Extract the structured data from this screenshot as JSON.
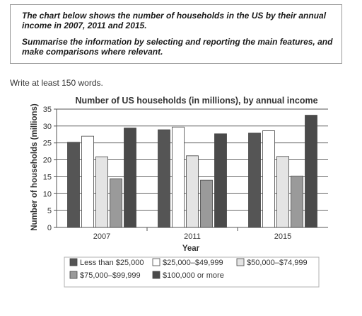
{
  "task": {
    "line1": "The chart below shows the number of households in the US by their annual income in 2007, 2011 and 2015.",
    "line2": "Summarise the information by selecting and reporting the main features, and make comparisons where relevant."
  },
  "instruction": "Write at least 150 words.",
  "colors": {
    "dark": "#555555",
    "white": "#ffffff",
    "light": "#e4e4e4",
    "mid": "#9a9a9a",
    "darker": "#4a4a4a"
  },
  "chart_data": {
    "type": "bar",
    "title": "Number of US households (in millions), by annual income",
    "xlabel": "Year",
    "ylabel": "Number of households (millions)",
    "categories": [
      "2007",
      "2011",
      "2015"
    ],
    "ylim": [
      0,
      35
    ],
    "yticks": [
      "0",
      "5",
      "10",
      "15",
      "20",
      "25",
      "30",
      "35"
    ],
    "grid": true,
    "legend_position": "bottom",
    "series": [
      {
        "name": "Less than $25,000",
        "values": [
          25.2,
          28.9,
          27.9
        ],
        "color": "#555555"
      },
      {
        "name": "$25,000–$49,999",
        "values": [
          27.0,
          29.7,
          28.6
        ],
        "color": "#ffffff"
      },
      {
        "name": "$50,000–$74,999",
        "values": [
          20.9,
          21.2,
          21.0
        ],
        "color": "#e4e4e4"
      },
      {
        "name": "$75,000–$99,999",
        "values": [
          14.4,
          14.0,
          15.2
        ],
        "color": "#9a9a9a"
      },
      {
        "name": "$100,000 or more",
        "values": [
          29.4,
          27.7,
          33.2
        ],
        "color": "#4a4a4a"
      }
    ]
  }
}
